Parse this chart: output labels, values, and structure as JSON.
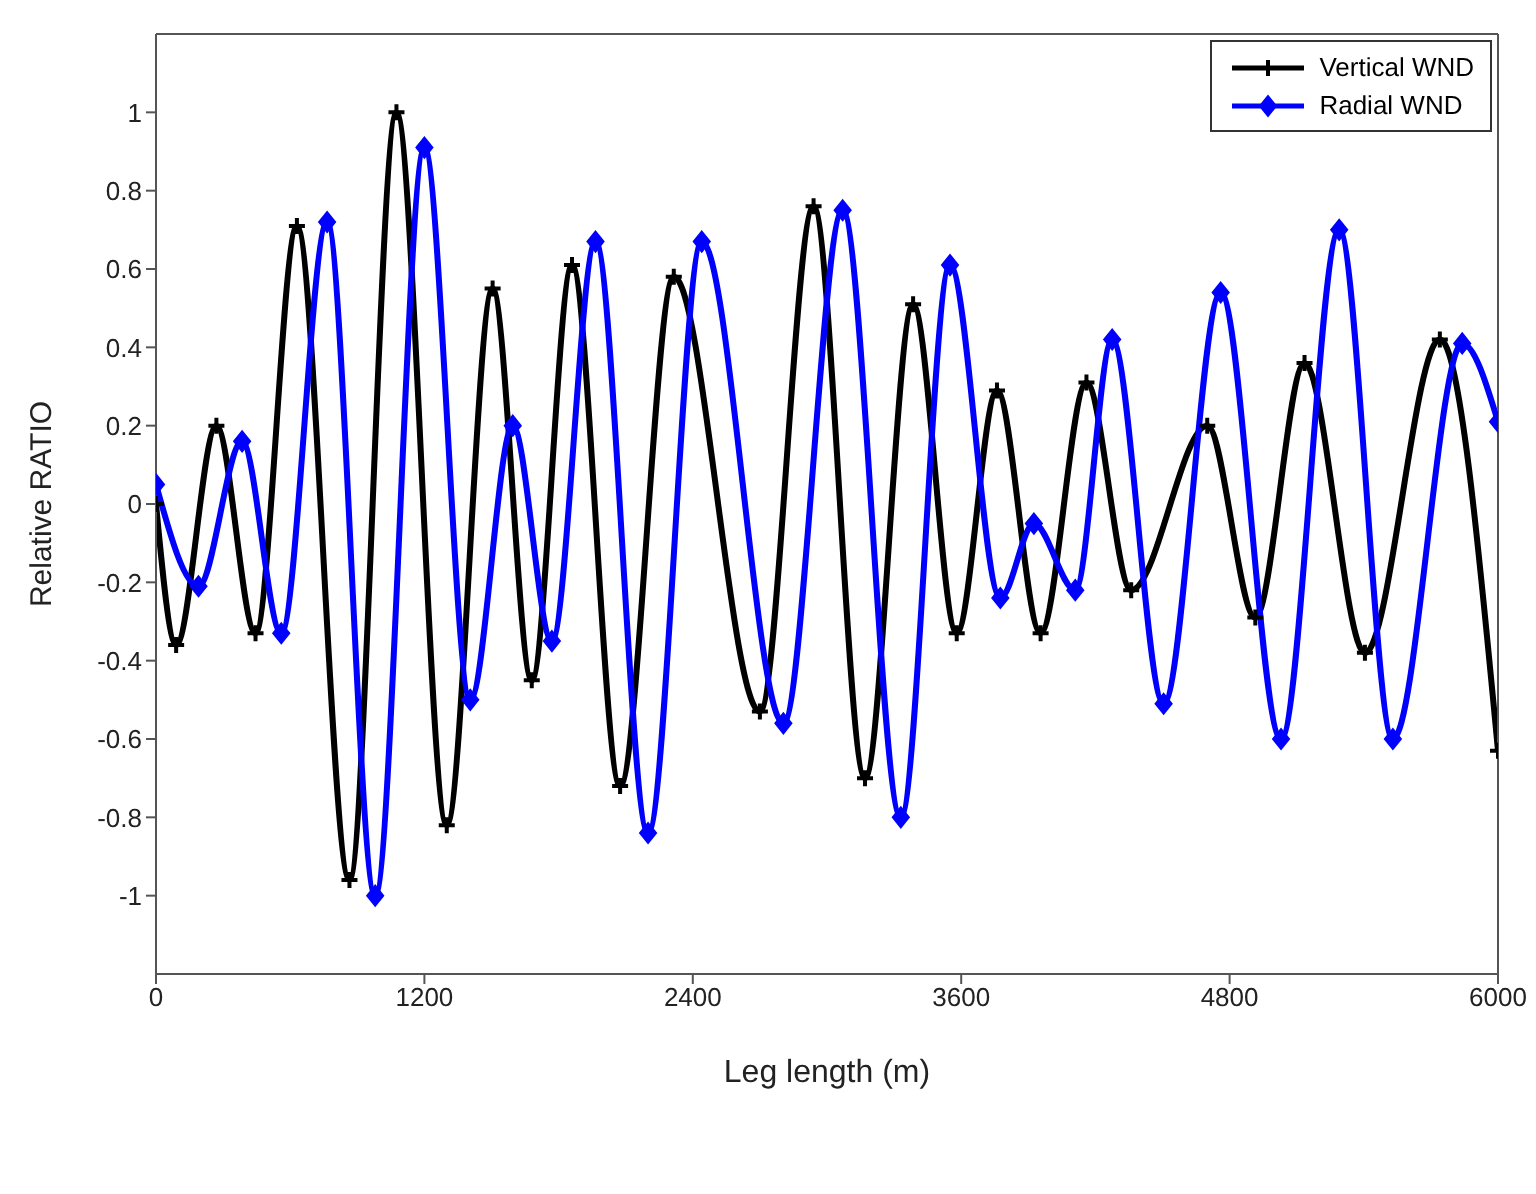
{
  "chart_data": {
    "type": "line",
    "xlabel": "Leg length (m)",
    "ylabel": "Relative RATIO",
    "xlim": [
      0,
      6000
    ],
    "xticks": [
      0,
      1200,
      2400,
      3600,
      4800,
      6000
    ],
    "ylim": [
      -1.2,
      1.2
    ],
    "yticks": [
      -1,
      -0.8,
      -0.6,
      -0.4,
      -0.2,
      0,
      0.2,
      0.4,
      0.6,
      0.8,
      1
    ],
    "legend": "top right",
    "line_style": "solid",
    "series": [
      {
        "name": "Vertical WND",
        "color": "#000000",
        "marker": "cross",
        "x": [
          0,
          90,
          270,
          445,
          630,
          865,
          1075,
          1300,
          1505,
          1680,
          1860,
          2075,
          2315,
          2700,
          2940,
          3170,
          3385,
          3580,
          3760,
          3955,
          4160,
          4360,
          4700,
          4915,
          5135,
          5405,
          5740,
          6000
        ],
        "values": [
          0,
          -0.36,
          0.2,
          -0.33,
          0.71,
          -0.96,
          1.0,
          -0.82,
          0.55,
          -0.45,
          0.61,
          -0.72,
          0.58,
          -0.53,
          0.76,
          -0.7,
          0.51,
          -0.33,
          0.29,
          -0.33,
          0.31,
          -0.22,
          0.2,
          -0.29,
          0.36,
          -0.38,
          0.42,
          -0.63
        ]
      },
      {
        "name": "Radial WND",
        "color": "#0000ff",
        "marker": "diamond",
        "x": [
          0,
          190,
          385,
          560,
          765,
          980,
          1200,
          1405,
          1595,
          1770,
          1965,
          2200,
          2440,
          2805,
          3070,
          3330,
          3550,
          3775,
          3925,
          4110,
          4275,
          4505,
          4760,
          5030,
          5290,
          5530,
          5840,
          6000
        ],
        "values": [
          0.05,
          -0.21,
          0.16,
          -0.33,
          0.72,
          -1.0,
          0.91,
          -0.5,
          0.2,
          -0.35,
          0.67,
          -0.84,
          0.67,
          -0.56,
          0.75,
          -0.8,
          0.61,
          -0.24,
          -0.05,
          -0.22,
          0.42,
          -0.51,
          0.54,
          -0.6,
          0.7,
          -0.6,
          0.41,
          0.21
        ]
      }
    ]
  }
}
